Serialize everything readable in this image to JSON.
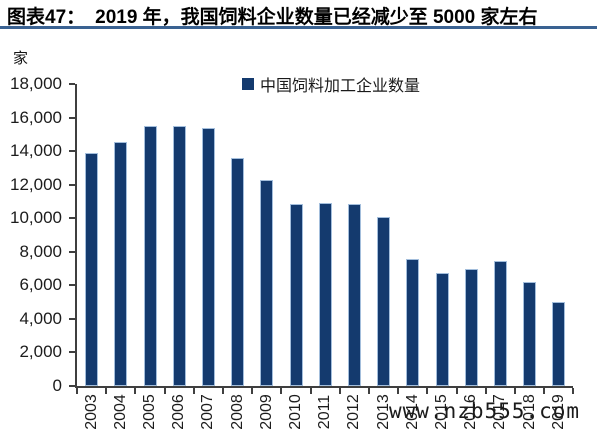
{
  "figure": {
    "number": "图表47：",
    "title": "2019 年，我国饲料企业数量已经减少至 5000 家左右"
  },
  "watermark": "www.nzb555.com",
  "chart_data": {
    "type": "bar",
    "title": "图表47： 2019 年，我国饲料企业数量已经减少至 5000 家左右",
    "unit_label": "家",
    "legend_position": "top-center",
    "legend": [
      {
        "name": "中国饲料加工企业数量",
        "color": "#143A6E"
      }
    ],
    "categories": [
      "2003",
      "2004",
      "2005",
      "2006",
      "2007",
      "2008",
      "2009",
      "2010",
      "2011",
      "2012",
      "2013",
      "2014",
      "2015",
      "2016",
      "2017",
      "2018",
      "2019"
    ],
    "series": [
      {
        "name": "中国饲料加工企业数量",
        "values": [
          13900,
          14550,
          15500,
          15500,
          15400,
          13600,
          12300,
          10850,
          10900,
          10850,
          10100,
          7600,
          6750,
          7000,
          7450,
          6200,
          5000
        ]
      }
    ],
    "xlabel": "",
    "ylabel": "家",
    "ylim": [
      0,
      18000
    ],
    "ytick_step": 2000,
    "ytick_labels": [
      "0",
      "2,000",
      "4,000",
      "6,000",
      "8,000",
      "10,000",
      "12,000",
      "14,000",
      "16,000",
      "18,000"
    ],
    "grid": false,
    "colors": {
      "bar": "#143A6E",
      "bar_border": "#A3BEDC",
      "axis": "#3f3f3f",
      "title_rule": "#3A6292",
      "text": "#1c1c1c"
    }
  }
}
